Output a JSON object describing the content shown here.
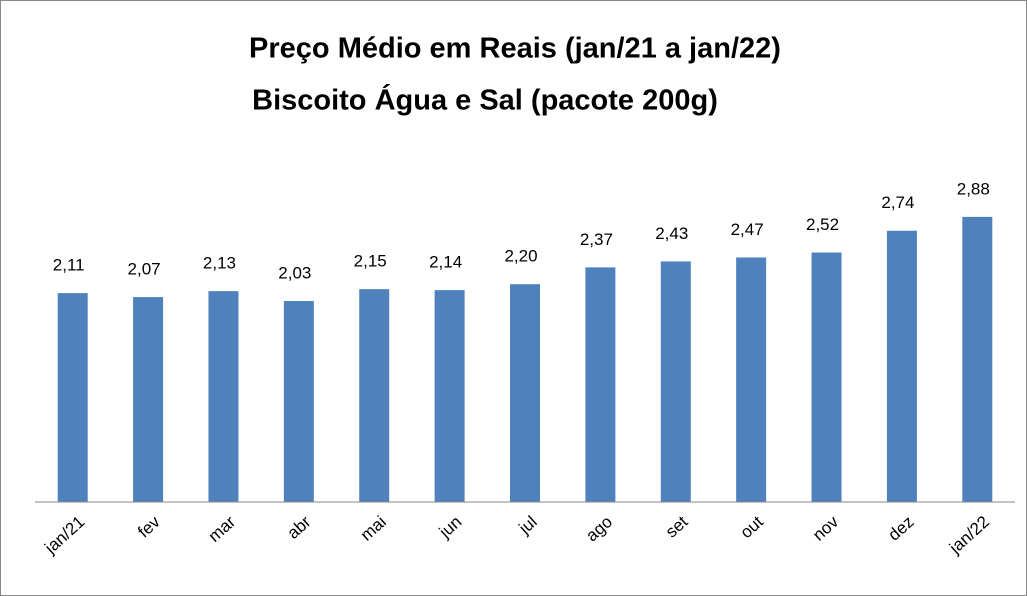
{
  "chart_data": {
    "type": "bar",
    "title": "Preço Médio em Reais (jan/21 a jan/22)",
    "subtitle": "Biscoito Água e Sal (pacote 200g)",
    "categories": [
      "jan/21",
      "fev",
      "mar",
      "abr",
      "mai",
      "jun",
      "jul",
      "ago",
      "set",
      "out",
      "nov",
      "dez",
      "jan/22"
    ],
    "values": [
      2.11,
      2.07,
      2.13,
      2.03,
      2.15,
      2.14,
      2.2,
      2.37,
      2.43,
      2.47,
      2.52,
      2.74,
      2.88
    ],
    "value_labels": [
      "2,11",
      "2,07",
      "2,13",
      "2,03",
      "2,15",
      "2,14",
      "2,20",
      "2,37",
      "2,43",
      "2,47",
      "2,52",
      "2,74",
      "2,88"
    ],
    "color": "#4f81bd",
    "ylim": [
      0,
      3
    ]
  }
}
